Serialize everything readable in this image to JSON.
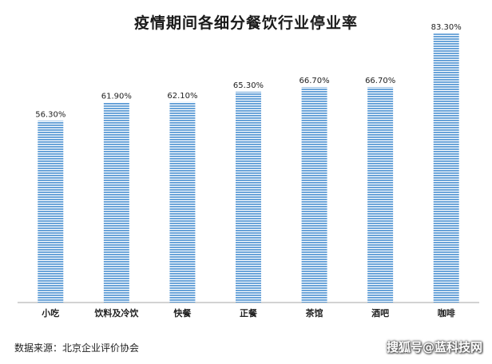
{
  "chart_data": {
    "type": "bar",
    "title": "疫情期间各细分餐饮行业停业率",
    "categories": [
      "小吃",
      "饮料及冷饮",
      "快餐",
      "正餐",
      "茶馆",
      "酒吧",
      "咖啡"
    ],
    "values": [
      56.3,
      61.9,
      62.1,
      65.3,
      66.7,
      66.7,
      83.3
    ],
    "data_labels": [
      "56.30%",
      "61.90%",
      "62.10%",
      "65.30%",
      "66.70%",
      "66.70%",
      "83.30%"
    ],
    "xlabel": "",
    "ylabel": "",
    "ylim": [
      0,
      90
    ],
    "grid": false,
    "legend": "none",
    "bar_color": "#5b9bd5",
    "bar_stripe_color": "#ffffff"
  },
  "footer": {
    "source": "数据来源：北京企业评价协会",
    "watermark": "搜狐号@蓝科技网"
  }
}
